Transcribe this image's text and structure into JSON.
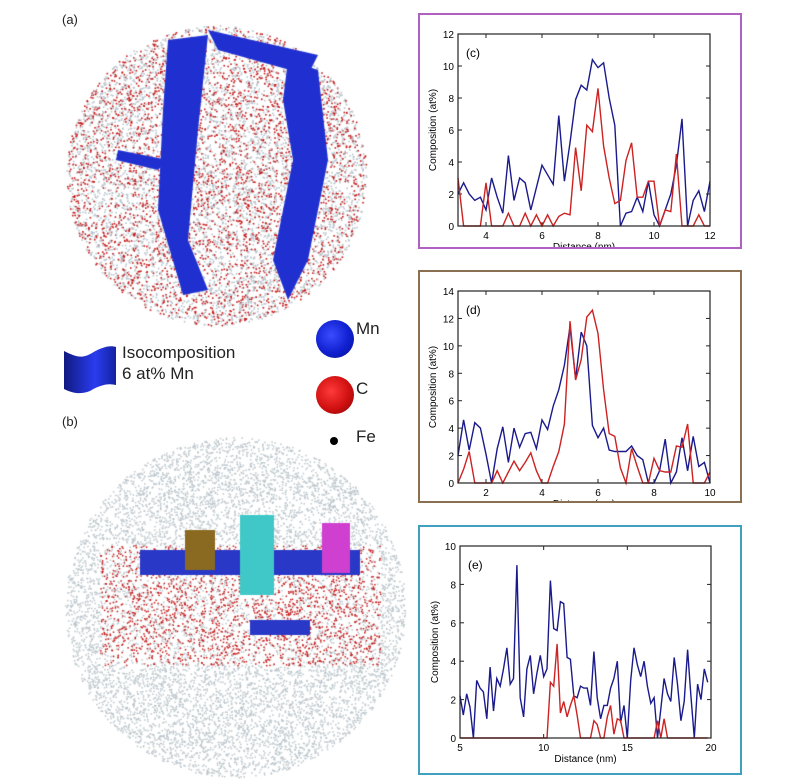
{
  "panels": {
    "a": "(a)",
    "b": "(b)"
  },
  "legend": {
    "isosurface_line1": "Isocomposition",
    "isosurface_line2": "6 at% Mn",
    "isosurface_color": "#2233cc",
    "atoms": [
      {
        "label": "Mn",
        "color": "#1020d0"
      },
      {
        "label": "C",
        "color": "#d01010"
      },
      {
        "label": "Fe",
        "color": "#000000"
      }
    ]
  },
  "chart_data": [
    {
      "type": "line",
      "panel_label": "(c)",
      "border_color": "#b060c0",
      "xlabel": "Distance (nm)",
      "ylabel": "Composition (at%)",
      "xlim": [
        3,
        12
      ],
      "ylim": [
        0,
        12
      ],
      "xticks": [
        4,
        6,
        8,
        10,
        12
      ],
      "yticks": [
        0,
        2,
        4,
        6,
        8,
        10,
        12
      ],
      "grid": false,
      "x": [
        3,
        3.2,
        3.4,
        3.6,
        3.8,
        4,
        4.2,
        4.4,
        4.6,
        4.8,
        5,
        5.2,
        5.4,
        5.6,
        5.8,
        6,
        6.2,
        6.4,
        6.6,
        6.8,
        7,
        7.2,
        7.4,
        7.6,
        7.8,
        8,
        8.2,
        8.4,
        8.6,
        8.8,
        9,
        9.2,
        9.4,
        9.6,
        9.8,
        10,
        10.2,
        10.4,
        10.6,
        10.8,
        11,
        11.2,
        11.4,
        11.6,
        11.8,
        12
      ],
      "series": [
        {
          "color": "#1a1a8c",
          "values": [
            2.0,
            2.7,
            2.0,
            1.6,
            1.8,
            1.0,
            3.0,
            1.8,
            0.8,
            4.4,
            1.6,
            3.0,
            2.7,
            1.0,
            2.4,
            3.8,
            3.2,
            2.6,
            6.9,
            2.8,
            5.2,
            7.9,
            8.8,
            8.5,
            10.4,
            9.9,
            10.2,
            8.0,
            6.3,
            0,
            0.8,
            0.9,
            1.8,
            0.9,
            2.8,
            0.7,
            0,
            1.0,
            2.0,
            3.8,
            6.7,
            0,
            1.6,
            2.2,
            0.9,
            2.8
          ]
        },
        {
          "color": "#cc2222",
          "values": [
            3.0,
            0,
            0,
            0,
            0,
            2.7,
            0,
            0,
            0,
            0.8,
            0,
            0,
            0.8,
            0,
            0.7,
            0,
            0.7,
            0,
            0.6,
            0.8,
            0.7,
            4.9,
            2.2,
            6.3,
            5.9,
            8.6,
            5.0,
            3.0,
            1.4,
            1.6,
            4.1,
            5.2,
            1.8,
            1.8,
            2.8,
            2.8,
            0,
            1.0,
            0.9,
            4.5,
            0,
            0,
            0,
            0.7,
            0,
            0
          ]
        }
      ]
    },
    {
      "type": "line",
      "panel_label": "(d)",
      "border_color": "#8a7050",
      "xlabel": "Distance (nm)",
      "ylabel": "Composition (at%)",
      "xlim": [
        1,
        10
      ],
      "ylim": [
        0,
        14
      ],
      "xticks": [
        2,
        4,
        6,
        8,
        10
      ],
      "yticks": [
        0,
        2,
        4,
        6,
        8,
        10,
        12,
        14
      ],
      "grid": false,
      "x": [
        1,
        1.2,
        1.4,
        1.6,
        1.8,
        2,
        2.2,
        2.4,
        2.6,
        2.8,
        3,
        3.2,
        3.4,
        3.6,
        3.8,
        4,
        4.2,
        4.4,
        4.6,
        4.8,
        5,
        5.2,
        5.4,
        5.6,
        5.8,
        6,
        6.2,
        6.4,
        6.6,
        6.8,
        7,
        7.2,
        7.4,
        7.6,
        7.8,
        8,
        8.2,
        8.4,
        8.6,
        8.8,
        9,
        9.2,
        9.4,
        9.6,
        9.8,
        10
      ],
      "series": [
        {
          "color": "#1a1a8c",
          "values": [
            2.0,
            4.6,
            2.4,
            4.4,
            4.0,
            2.1,
            0,
            2.5,
            4.1,
            1.5,
            4.0,
            2.6,
            3.6,
            3.7,
            2.5,
            4.6,
            3.9,
            5.6,
            6.8,
            8.6,
            11.4,
            7.6,
            11.0,
            10.0,
            4.2,
            3.3,
            4.0,
            2.4,
            2.3,
            2.3,
            2.3,
            2.7,
            2.0,
            1.7,
            0,
            0,
            0.9,
            3.2,
            0,
            0.8,
            3.3,
            0.9,
            3.4,
            1.2,
            1.5,
            0
          ]
        },
        {
          "color": "#cc2222",
          "values": [
            0,
            1.0,
            2.3,
            0,
            0,
            0,
            0,
            0.9,
            0,
            0.8,
            1.6,
            0.9,
            1.5,
            2.2,
            0.9,
            0,
            0,
            1.2,
            2.3,
            4.3,
            11.8,
            7.5,
            9.0,
            12.1,
            12.6,
            10.9,
            6.8,
            3.6,
            3.4,
            1.1,
            0,
            2.5,
            1.2,
            0,
            0,
            1.8,
            0.9,
            0.8,
            0.8,
            2.7,
            2.6,
            4.3,
            0,
            0,
            0,
            0.8
          ]
        }
      ]
    },
    {
      "type": "line",
      "panel_label": "(e)",
      "border_color": "#40a0c0",
      "xlabel": "Distance (nm)",
      "ylabel": "Composition (at%)",
      "xlim": [
        5,
        20
      ],
      "ylim": [
        0,
        10
      ],
      "xticks": [
        5,
        10,
        15,
        20
      ],
      "yticks": [
        0,
        2,
        4,
        6,
        8,
        10
      ],
      "grid": false,
      "x": [
        5,
        5.2,
        5.4,
        5.6,
        5.8,
        6,
        6.2,
        6.4,
        6.6,
        6.8,
        7,
        7.2,
        7.4,
        7.6,
        7.8,
        8,
        8.2,
        8.4,
        8.6,
        8.8,
        9,
        9.2,
        9.4,
        9.6,
        9.8,
        10,
        10.2,
        10.4,
        10.6,
        10.8,
        11,
        11.2,
        11.4,
        11.6,
        11.8,
        12,
        12.2,
        12.4,
        12.6,
        12.8,
        13,
        13.2,
        13.4,
        13.6,
        13.8,
        14,
        14.2,
        14.4,
        14.6,
        14.8,
        15,
        15.2,
        15.4,
        15.6,
        15.8,
        16,
        16.2,
        16.4,
        16.6,
        16.8,
        17,
        17.2,
        17.4,
        17.6,
        17.8,
        18,
        18.2,
        18.4,
        18.6,
        18.8,
        19,
        19.2,
        19.4,
        19.6,
        19.8
      ],
      "series": [
        {
          "color": "#1a1a8c",
          "values": [
            2.2,
            1.2,
            2.3,
            1.6,
            0,
            3.0,
            2.6,
            2.4,
            1.0,
            3.7,
            1.4,
            3.1,
            2.7,
            3.6,
            4.7,
            2.8,
            3.1,
            9.0,
            2.1,
            1.1,
            3.6,
            4.3,
            2.3,
            3.4,
            4.3,
            3.2,
            3.6,
            8.2,
            5.7,
            5.6,
            7.1,
            7.0,
            4.2,
            4.1,
            2.2,
            2.1,
            2.7,
            2.6,
            2.6,
            1.7,
            4.5,
            2.1,
            1.0,
            1.7,
            1.7,
            2.6,
            3.1,
            4.0,
            0.8,
            1.7,
            0,
            3.0,
            4.7,
            3.8,
            3.2,
            4.0,
            2.7,
            1.8,
            2.1,
            0,
            1.5,
            3.1,
            2.3,
            1.9,
            4.2,
            2.8,
            0.9,
            1.9,
            4.6,
            2.2,
            0,
            2.8,
            2.0,
            3.6,
            2.9
          ]
        },
        {
          "color": "#cc2222",
          "values": [
            0,
            0,
            0,
            0,
            0,
            0,
            0,
            0,
            0,
            0,
            0,
            0,
            0,
            0,
            0,
            0,
            0,
            0,
            0,
            0,
            0,
            0,
            0,
            0,
            0,
            0,
            0,
            2.9,
            2.7,
            4.9,
            1.3,
            1.9,
            1.1,
            1.7,
            2.2,
            1.2,
            0,
            0,
            0,
            0,
            0.9,
            0.7,
            0,
            0,
            1.1,
            1.7,
            0.2,
            1.0,
            0.9,
            0,
            0,
            0,
            0,
            0,
            0,
            0,
            0,
            0,
            0,
            0.9,
            0,
            1.0,
            0,
            0,
            0,
            0,
            0,
            0,
            0,
            0,
            0,
            0,
            0,
            0,
            0
          ]
        }
      ]
    }
  ]
}
